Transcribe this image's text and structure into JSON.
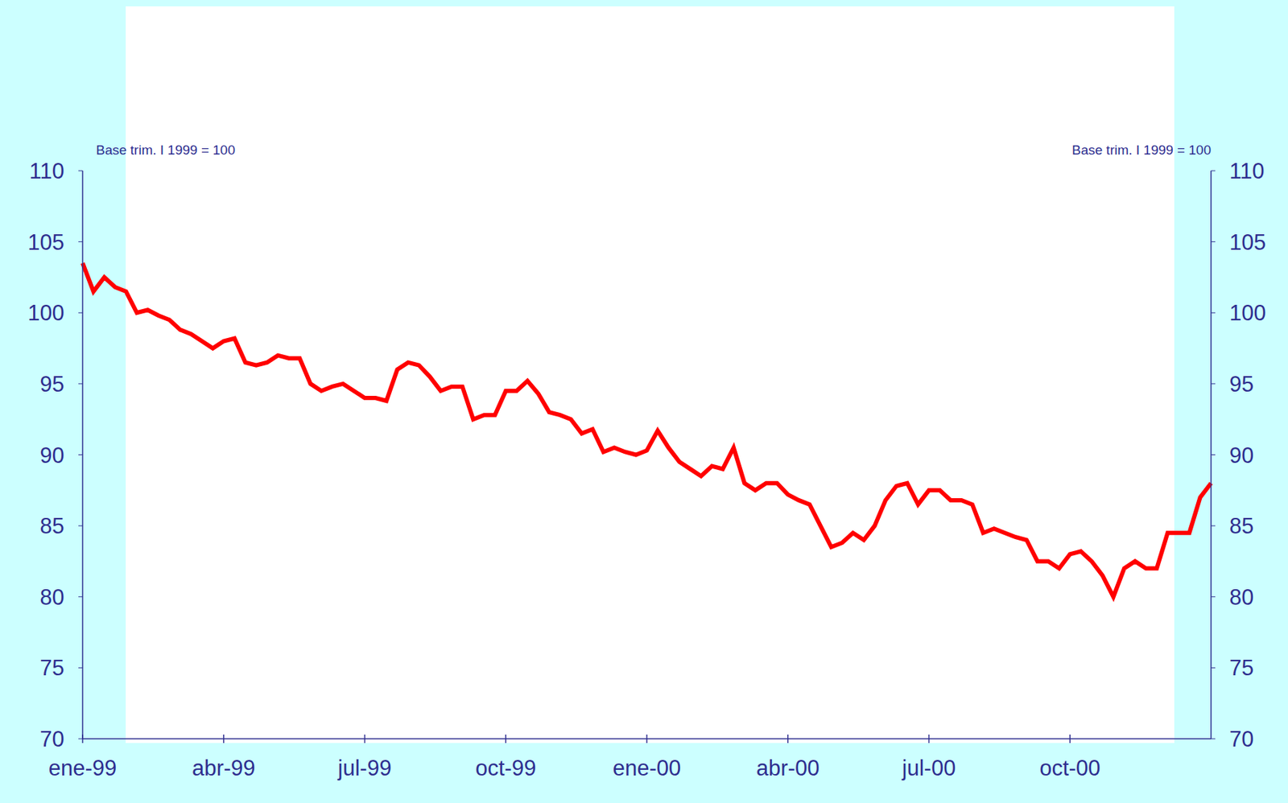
{
  "chart_data": {
    "type": "line",
    "ylabel": "Base trim. I 1999 = 100",
    "y2label": "Base trim. I 1999 = 100",
    "categories": [
      "ene-99",
      null,
      null,
      null,
      null,
      null,
      null,
      null,
      null,
      null,
      null,
      null,
      null,
      "abr-99",
      null,
      null,
      null,
      null,
      null,
      null,
      null,
      null,
      null,
      null,
      null,
      null,
      "jul-99",
      null,
      null,
      null,
      null,
      null,
      null,
      null,
      null,
      null,
      null,
      null,
      null,
      "oct-99",
      null,
      null,
      null,
      null,
      null,
      null,
      null,
      null,
      null,
      null,
      null,
      null,
      "ene-00",
      null,
      null,
      null,
      null,
      null,
      null,
      null,
      null,
      null,
      null,
      null,
      null,
      "abr-00",
      null,
      null,
      null,
      null,
      null,
      null,
      null,
      null,
      null,
      null,
      null,
      null,
      "jul-00",
      null,
      null,
      null,
      null,
      null,
      null,
      null,
      null,
      null,
      null,
      null,
      null,
      "oct-00",
      null,
      null,
      null,
      null,
      null,
      null,
      null,
      null,
      null,
      null,
      null,
      null,
      null
    ],
    "values": [
      103.5,
      101.5,
      102.5,
      101.8,
      101.5,
      100,
      100.2,
      99.8,
      99.5,
      98.8,
      98.5,
      98,
      97.5,
      98,
      98.2,
      96.5,
      96.3,
      96.5,
      97,
      96.8,
      96.8,
      95,
      94.5,
      94.8,
      95,
      94.5,
      94,
      94,
      93.8,
      96,
      96.5,
      96.3,
      95.5,
      94.5,
      94.8,
      94.8,
      92.5,
      92.8,
      92.8,
      94.5,
      94.5,
      95.2,
      94.3,
      93,
      92.8,
      92.5,
      91.5,
      91.8,
      90.2,
      90.5,
      90.2,
      90,
      90.3,
      91.7,
      90.5,
      89.5,
      89,
      88.5,
      89.2,
      89,
      90.5,
      88,
      87.5,
      88,
      88,
      87.2,
      86.8,
      86.5,
      85,
      83.5,
      83.8,
      84.5,
      84,
      85,
      86.8,
      87.8,
      88,
      86.5,
      87.5,
      87.5,
      86.8,
      86.8,
      86.5,
      84.5,
      84.8,
      84.5,
      84.2,
      84,
      82.5,
      82.5,
      82,
      83,
      83.2,
      82.5,
      81.5,
      80,
      82,
      82.5,
      82,
      82,
      84.5,
      84.5,
      84.5,
      87,
      88
    ],
    "color": "#ff0000",
    "ylim": [
      70,
      110
    ],
    "yticks": [
      70,
      75,
      80,
      85,
      90,
      95,
      100,
      105,
      110
    ],
    "y2lim": [
      70,
      110
    ],
    "y2ticks": [
      70,
      75,
      80,
      85,
      90,
      95,
      100,
      105,
      110
    ],
    "grid": false
  }
}
